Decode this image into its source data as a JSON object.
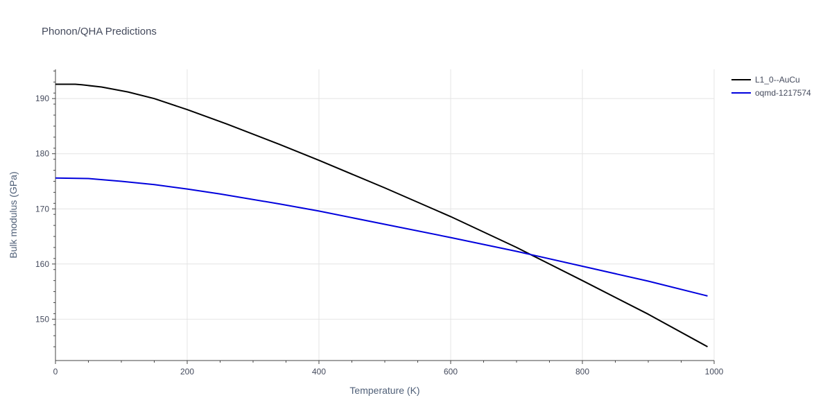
{
  "chart_data": {
    "type": "line",
    "title": "Phonon/QHA Predictions",
    "xlabel": "Temperature (K)",
    "ylabel": "Bulk modulus (GPa)",
    "xlim": [
      0,
      1000
    ],
    "ylim": [
      142.5,
      195.3
    ],
    "xticks": [
      0,
      200,
      400,
      600,
      800,
      1000
    ],
    "yticks": [
      150,
      160,
      170,
      180,
      190
    ],
    "grid": true,
    "legend_position": "top-right",
    "series": [
      {
        "name": "L1_0--AuCu",
        "color": "#000000",
        "x": [
          0,
          30,
          40,
          70,
          110,
          150,
          200,
          260,
          340,
          400,
          500,
          600,
          700,
          800,
          900,
          990
        ],
        "y": [
          192.6,
          192.6,
          192.5,
          192.1,
          191.2,
          190.0,
          188.0,
          185.4,
          181.7,
          178.8,
          173.8,
          168.6,
          163.0,
          157.0,
          150.9,
          145.0
        ]
      },
      {
        "name": "oqmd-1217574",
        "color": "#0000dd",
        "x": [
          0,
          50,
          100,
          150,
          200,
          250,
          340,
          400,
          500,
          600,
          700,
          800,
          900,
          990
        ],
        "y": [
          175.6,
          175.5,
          175.0,
          174.4,
          173.6,
          172.7,
          170.9,
          169.6,
          167.2,
          164.8,
          162.3,
          159.6,
          156.9,
          154.2
        ]
      }
    ]
  }
}
